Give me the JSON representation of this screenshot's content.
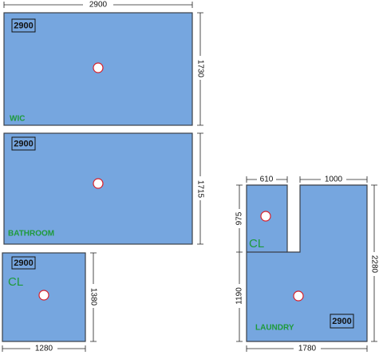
{
  "rooms": [
    {
      "name": "WIC",
      "tag": "2900",
      "dims": [
        "2900",
        "1730"
      ]
    },
    {
      "name": "BATHROOM",
      "tag": "2900",
      "dims": [
        "1715"
      ]
    },
    {
      "name": "CL",
      "tag": "2900",
      "dims": [
        "1380",
        "1280"
      ]
    },
    {
      "name": "LAUNDRY",
      "tag": "2900",
      "closet": "CL",
      "dims": [
        "610",
        "1000",
        "975",
        "1190",
        "2280",
        "1780"
      ]
    }
  ]
}
